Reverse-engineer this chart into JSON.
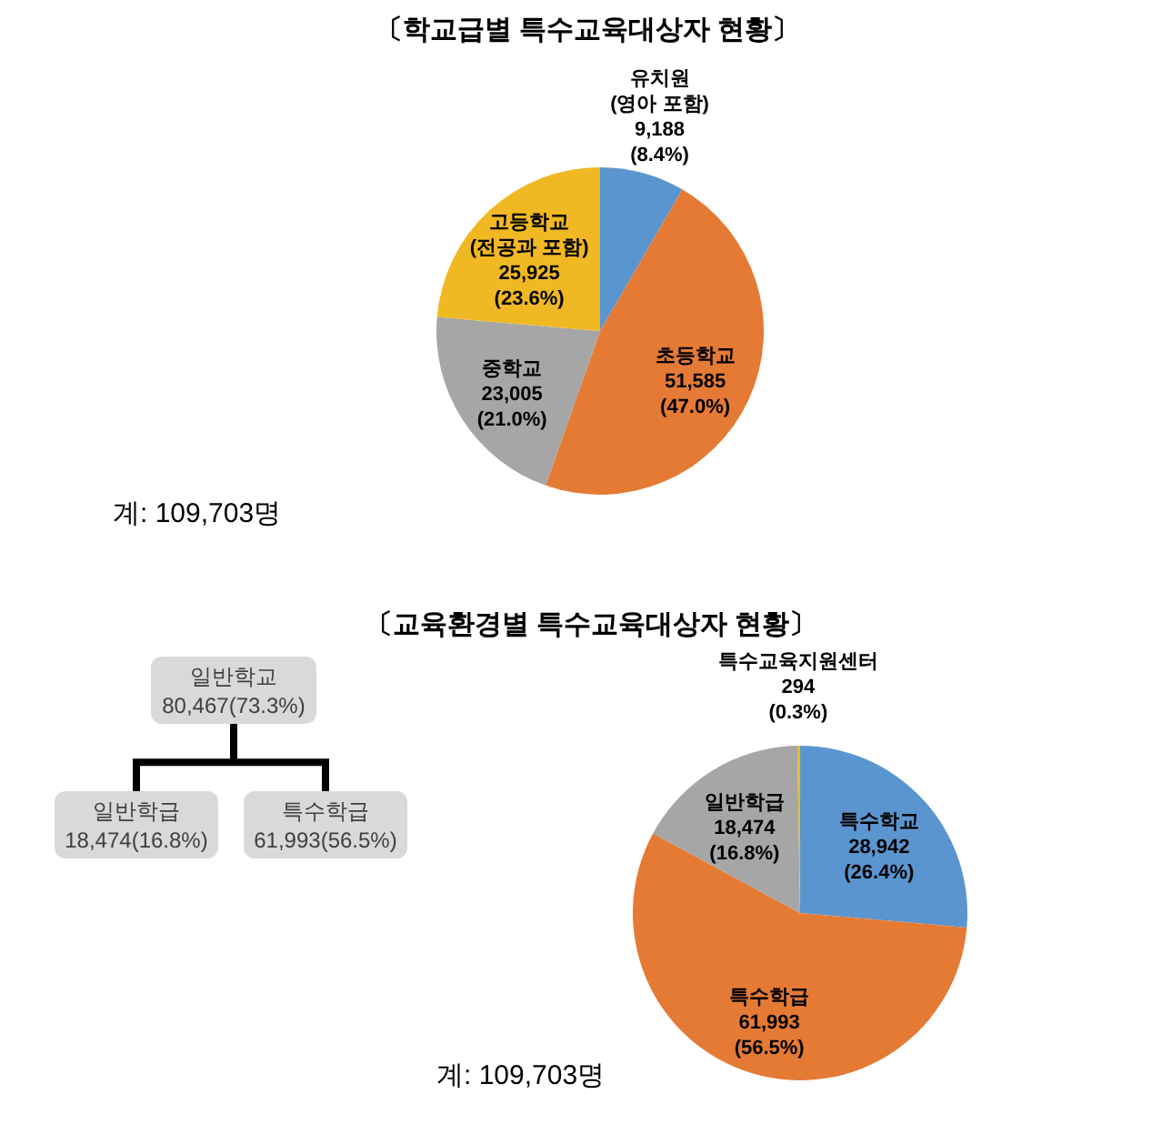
{
  "chart_data": [
    {
      "type": "pie",
      "title": "〔학교급별 특수교육대상자 현황〕",
      "categories": [
        "유치원\n(영아 포함)",
        "초등학교",
        "중학교",
        "고등학교\n(전공과 포함)"
      ],
      "values": [
        9188,
        51585,
        23005,
        25925
      ],
      "value_labels": [
        "9,188\n(8.4%)",
        "51,585\n(47.0%)",
        "23,005\n(21.0%)",
        "25,925\n(23.6%)"
      ],
      "colors": [
        "#5b95cf",
        "#e57a35",
        "#a6a6a6",
        "#f0b823"
      ],
      "annotations": [
        "계: 109,703명"
      ]
    },
    {
      "type": "pie",
      "title": "〔교육환경별 특수교육대상자 현황〕",
      "categories": [
        "특수학교",
        "특수학급",
        "일반학급",
        "특수교육지원센터"
      ],
      "values": [
        28942,
        61993,
        18474,
        294
      ],
      "value_labels": [
        "28,942\n(26.4%)",
        "61,993\n(56.5%)",
        "18,474\n(16.8%)",
        "294\n(0.3%)"
      ],
      "colors": [
        "#5b95cf",
        "#e57a35",
        "#a6a6a6",
        "#f0b823"
      ],
      "annotations": [
        "계: 109,703명"
      ]
    },
    {
      "type": "other",
      "categories": [
        "일반학교",
        "일반학급",
        "특수학급"
      ],
      "value_labels": [
        "80,467(73.3%)",
        "18,474(16.8%)",
        "61,993(56.5%)"
      ]
    }
  ]
}
